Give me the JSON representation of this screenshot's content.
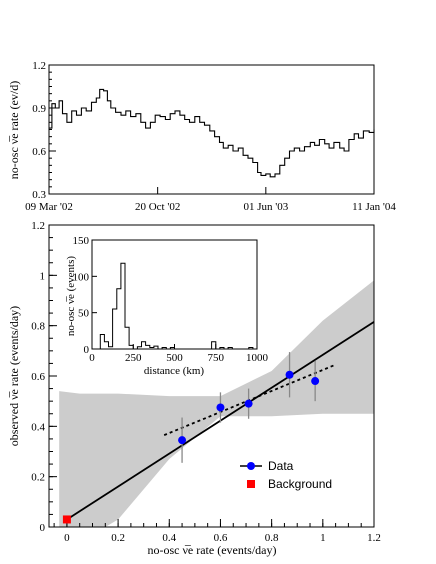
{
  "chart_data": [
    {
      "type": "line",
      "ylabel": "no-osc ν̅e rate (ev/d)",
      "ylim": [
        0.3,
        1.2
      ],
      "yticks": [
        "0.3",
        "0.6",
        "0.9",
        "1.2"
      ],
      "xlim": [
        "2002-03-09",
        "2004-01-11"
      ],
      "xticks": [
        {
          "date": "2002-03-09",
          "label": "09 Mar '02"
        },
        {
          "date": "2002-10-20",
          "label": "20 Oct '02"
        },
        {
          "date": "2003-06-01",
          "label": "01 Jun '03"
        },
        {
          "date": "2004-01-11",
          "label": "11 Jan '04"
        }
      ],
      "series": [
        {
          "x": [
            "2002-03-09",
            "2002-03-15",
            "2002-03-22",
            "2002-03-30",
            "2002-04-06",
            "2002-04-15",
            "2002-04-25",
            "2002-05-05",
            "2002-05-15",
            "2002-05-25",
            "2002-06-05",
            "2002-06-15",
            "2002-06-22",
            "2002-06-30",
            "2002-07-08",
            "2002-07-15",
            "2002-07-25",
            "2002-08-05",
            "2002-08-15",
            "2002-08-25",
            "2002-09-05",
            "2002-09-15",
            "2002-09-25",
            "2002-10-05",
            "2002-10-15",
            "2002-10-25",
            "2002-11-05",
            "2002-11-15",
            "2002-11-25",
            "2002-12-05",
            "2002-12-15",
            "2002-12-25",
            "2003-01-05",
            "2003-01-15",
            "2003-01-25",
            "2003-02-05",
            "2003-02-15",
            "2003-02-25",
            "2003-03-05",
            "2003-03-15",
            "2003-03-25",
            "2003-04-05",
            "2003-04-15",
            "2003-04-25",
            "2003-05-05",
            "2003-05-15",
            "2003-05-22",
            "2003-06-01",
            "2003-06-10",
            "2003-06-20",
            "2003-06-30",
            "2003-07-10",
            "2003-07-20",
            "2003-07-30",
            "2003-08-10",
            "2003-08-20",
            "2003-09-01",
            "2003-09-10",
            "2003-09-20",
            "2003-10-01",
            "2003-10-10",
            "2003-10-20",
            "2003-11-01",
            "2003-11-10",
            "2003-11-20",
            "2003-12-01",
            "2003-12-10",
            "2003-12-20",
            "2004-01-01",
            "2004-01-11"
          ],
          "y": [
            0.76,
            0.93,
            0.9,
            0.95,
            0.86,
            0.8,
            0.88,
            0.85,
            0.9,
            0.88,
            0.94,
            0.97,
            1.03,
            1.02,
            0.95,
            0.9,
            0.87,
            0.85,
            0.88,
            0.84,
            0.86,
            0.8,
            0.76,
            0.8,
            0.85,
            0.84,
            0.82,
            0.86,
            0.88,
            0.85,
            0.82,
            0.8,
            0.84,
            0.8,
            0.78,
            0.74,
            0.7,
            0.66,
            0.62,
            0.64,
            0.6,
            0.62,
            0.57,
            0.55,
            0.52,
            0.45,
            0.43,
            0.44,
            0.42,
            0.44,
            0.5,
            0.55,
            0.6,
            0.62,
            0.6,
            0.63,
            0.66,
            0.64,
            0.68,
            0.65,
            0.62,
            0.66,
            0.62,
            0.6,
            0.68,
            0.72,
            0.69,
            0.74,
            0.73,
            0.75
          ]
        }
      ]
    },
    {
      "type": "scatter",
      "xlabel": "no-osc ν̅e rate (events/day)",
      "ylabel": "observed ν̅e rate (events/day)",
      "xlim": [
        -0.07,
        1.2
      ],
      "ylim": [
        0,
        1.2
      ],
      "xticks": [
        "0",
        "0.2",
        "0.4",
        "0.6",
        "0.8",
        "1",
        "1.2"
      ],
      "yticks": [
        "0",
        "0.2",
        "0.4",
        "0.6",
        "0.8",
        "1",
        "1.2"
      ],
      "legend": [
        "Data",
        "Background"
      ],
      "legend_position": "bottom-right",
      "colors": {
        "data": "#0000ff",
        "background": "#ff0000",
        "band": "#cccccc"
      },
      "data_points": [
        {
          "x": 0.45,
          "y": 0.345,
          "err": 0.09
        },
        {
          "x": 0.6,
          "y": 0.475,
          "err": 0.06
        },
        {
          "x": 0.71,
          "y": 0.49,
          "err": 0.06
        },
        {
          "x": 0.87,
          "y": 0.605,
          "err": 0.09
        },
        {
          "x": 0.97,
          "y": 0.58,
          "err": 0.08
        }
      ],
      "background_point": {
        "x": 0.0,
        "y": 0.03
      },
      "fit_line": {
        "x": [
          0.0,
          1.2
        ],
        "y": [
          0.03,
          0.815
        ]
      },
      "dashed_line": {
        "x": [
          0.38,
          1.05
        ],
        "y": [
          0.365,
          0.645
        ]
      },
      "band_upper": {
        "x": [
          -0.03,
          0.05,
          0.2,
          0.4,
          0.6,
          0.8,
          1.0,
          1.2
        ],
        "y": [
          0.54,
          0.53,
          0.53,
          0.52,
          0.52,
          0.62,
          0.82,
          0.98
        ]
      },
      "band_lower": {
        "x": [
          -0.03,
          0.15,
          0.2,
          0.4,
          0.6,
          0.8,
          1.0,
          1.2
        ],
        "y": [
          0.0,
          0.0,
          0.03,
          0.27,
          0.44,
          0.44,
          0.45,
          0.45
        ]
      }
    },
    {
      "type": "bar",
      "xlabel": "distance (km)",
      "ylabel": "no-osc ν̅e (events)",
      "xlim": [
        0,
        1000
      ],
      "ylim": [
        0,
        150
      ],
      "xticks": [
        "0",
        "250",
        "500",
        "750",
        "1000"
      ],
      "yticks": [
        "0",
        "50",
        "100",
        "150"
      ],
      "bin_width": 25,
      "bins": [
        {
          "x": 50,
          "y": 20
        },
        {
          "x": 75,
          "y": 10
        },
        {
          "x": 100,
          "y": 3
        },
        {
          "x": 125,
          "y": 55
        },
        {
          "x": 150,
          "y": 83
        },
        {
          "x": 175,
          "y": 118
        },
        {
          "x": 200,
          "y": 30
        },
        {
          "x": 225,
          "y": 5
        },
        {
          "x": 275,
          "y": 3
        },
        {
          "x": 300,
          "y": 10
        },
        {
          "x": 325,
          "y": 5
        },
        {
          "x": 350,
          "y": 2
        },
        {
          "x": 375,
          "y": 4
        },
        {
          "x": 425,
          "y": 2
        },
        {
          "x": 475,
          "y": 2
        },
        {
          "x": 725,
          "y": 10
        },
        {
          "x": 775,
          "y": 2
        },
        {
          "x": 825,
          "y": 2
        },
        {
          "x": 950,
          "y": 2
        }
      ]
    }
  ]
}
